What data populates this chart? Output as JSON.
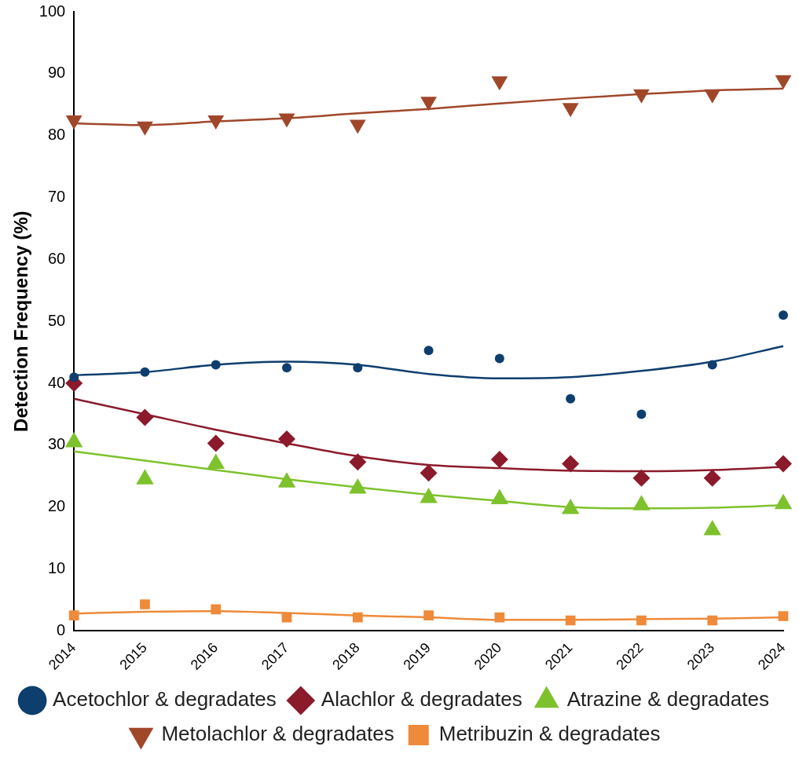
{
  "chart_data": {
    "type": "scatter",
    "ylabel": "Detection Frequency (%)",
    "categories": [
      "2014",
      "2015",
      "2016",
      "2017",
      "2018",
      "2019",
      "2020",
      "2021",
      "2022",
      "2023",
      "2024"
    ],
    "ylim": [
      0,
      100
    ],
    "yticks": [
      0,
      10,
      20,
      30,
      40,
      50,
      60,
      70,
      80,
      90,
      100
    ],
    "grid": false,
    "legend": "bottom",
    "series": [
      {
        "name": "Acetochlor & degradates",
        "color": "#0d3e6e",
        "marker": "circle",
        "values": [
          41,
          41.8,
          43,
          42.5,
          42.5,
          45.3,
          44,
          37.5,
          35,
          43,
          51
        ]
      },
      {
        "name": "Alachlor & degradates",
        "color": "#8b1a2b",
        "marker": "diamond",
        "values": [
          40,
          34.5,
          30.3,
          31,
          27.3,
          25.5,
          27.7,
          27,
          24.7,
          24.7,
          27
        ]
      },
      {
        "name": "Atrazine & degradates",
        "color": "#7dc22c",
        "marker": "triangle",
        "values": [
          30.5,
          24.5,
          27,
          24,
          23,
          21.5,
          21.3,
          19.7,
          20.3,
          16.3,
          20.5
        ]
      },
      {
        "name": "Metolachlor & degradates",
        "color": "#a0472a",
        "marker": "triangle-down",
        "values": [
          82.5,
          81.5,
          82.5,
          82.8,
          81.8,
          85.5,
          88.8,
          84.5,
          86.7,
          86.7,
          89
        ]
      },
      {
        "name": "Metribuzin & degradates",
        "color": "#ee8a3a",
        "marker": "square",
        "values": [
          2.5,
          4.3,
          3.5,
          2.2,
          2.2,
          2.5,
          2.2,
          1.7,
          1.7,
          1.7,
          2.4
        ]
      },
      {
        "type": "line",
        "color": "#0d3e6e",
        "marker": "none",
        "values": [
          41.3,
          41.8,
          43,
          43.5,
          43,
          41.5,
          40.8,
          41,
          42,
          43.5,
          46
        ]
      },
      {
        "type": "line",
        "color": "#8b1a2b",
        "marker": "none",
        "values": [
          37.5,
          35,
          32.5,
          30.3,
          28.2,
          26.8,
          26.3,
          25.9,
          25.8,
          26,
          26.5
        ]
      },
      {
        "type": "line",
        "color": "#7dc22c",
        "marker": "none",
        "values": [
          29,
          27.5,
          26,
          24.5,
          23.2,
          22,
          21,
          20,
          19.8,
          19.9,
          20.3
        ]
      },
      {
        "type": "line",
        "color": "#a0472a",
        "marker": "none",
        "values": [
          82,
          81.7,
          82.3,
          82.8,
          83.6,
          84.3,
          85.2,
          86,
          86.7,
          87.3,
          87.6
        ]
      },
      {
        "type": "line",
        "color": "#ee8a3a",
        "marker": "none",
        "values": [
          2.8,
          3.1,
          3.2,
          2.9,
          2.5,
          2.2,
          1.8,
          1.8,
          1.9,
          2.0,
          2.2
        ]
      }
    ]
  }
}
